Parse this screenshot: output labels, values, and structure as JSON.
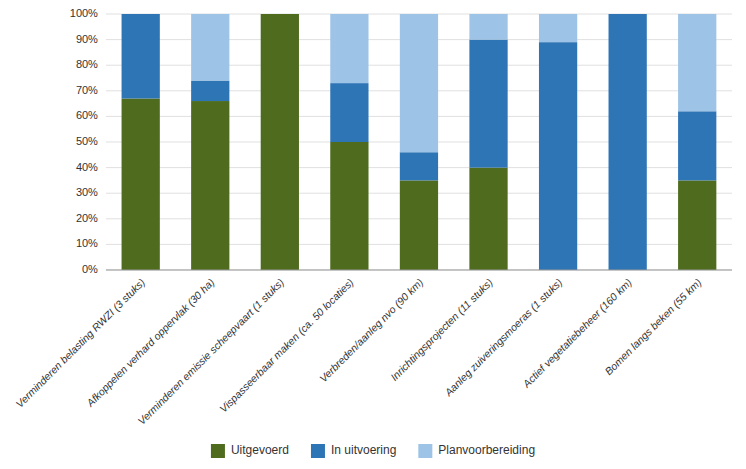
{
  "chart_data": {
    "type": "bar",
    "stacked": true,
    "categories": [
      "Verminderen belasting RWZI (3 stuks)",
      "Afkoppelen verhard oppervlak (30 ha)",
      "Verminderen emissie scheepvaart (1 stuks)",
      "Vispasseerbaar maken (ca. 50 locaties)",
      "Verbreden/aanleg nvo (90 km)",
      "Inrichtingsprojecten (11 stuks)",
      "Aanleg zuiveringsmoeras (1 stuks)",
      "Actief vegetatiebeheer (160 km)",
      "Bomen langs beken (55 km)"
    ],
    "series": [
      {
        "name": "Uitgevoerd",
        "color": "#4e6b1e",
        "values": [
          67,
          66,
          100,
          50,
          35,
          40,
          0,
          0,
          35
        ]
      },
      {
        "name": "In uitvoering",
        "color": "#2e75b6",
        "values": [
          33,
          8,
          0,
          23,
          11,
          50,
          89,
          100,
          27
        ]
      },
      {
        "name": "Planvoorbereiding",
        "color": "#9dc3e6",
        "values": [
          0,
          26,
          0,
          27,
          54,
          10,
          11,
          0,
          38
        ]
      }
    ],
    "ylim": [
      0,
      100
    ],
    "yticks": [
      {
        "value": 0,
        "label": "0%"
      },
      {
        "value": 10,
        "label": "10%"
      },
      {
        "value": 20,
        "label": "20%"
      },
      {
        "value": 30,
        "label": "30%"
      },
      {
        "value": 40,
        "label": "40%"
      },
      {
        "value": 50,
        "label": "50%"
      },
      {
        "value": 60,
        "label": "60%"
      },
      {
        "value": 70,
        "label": "70%"
      },
      {
        "value": 80,
        "label": "80%"
      },
      {
        "value": 90,
        "label": "90%"
      },
      {
        "value": 100,
        "label": "100%"
      }
    ],
    "grid": true,
    "legend": "bottom"
  }
}
